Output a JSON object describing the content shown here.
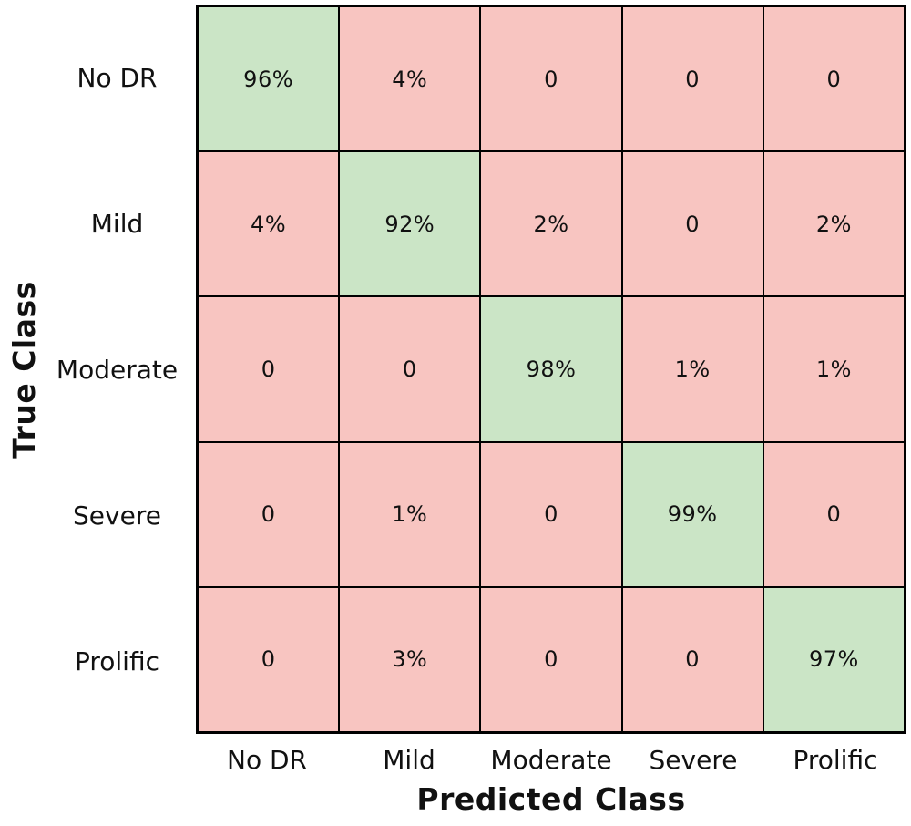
{
  "figure": {
    "background_color": "#ffffff",
    "grid_line_color": "#000000",
    "text_color": "#111111"
  },
  "chart_data": {
    "type": "heatmap",
    "subtype": "confusion-matrix",
    "title": "",
    "xlabel": "Predicted Class",
    "ylabel": "True Class",
    "x_categories": [
      "No DR",
      "Mild",
      "Moderate",
      "Severe",
      "Prolific"
    ],
    "y_categories": [
      "No DR",
      "Mild",
      "Moderate",
      "Severe",
      "Prolific"
    ],
    "cell_values": [
      [
        "96%",
        "4%",
        "0",
        "0",
        "0"
      ],
      [
        "4%",
        "92%",
        "2%",
        "0",
        "2%"
      ],
      [
        "0",
        "0",
        "98%",
        "1%",
        "1%"
      ],
      [
        "0",
        "1%",
        "0",
        "99%",
        "0"
      ],
      [
        "0",
        "3%",
        "0",
        "0",
        "97%"
      ]
    ],
    "diagonal_color": "#cbe5c6",
    "off_diagonal_color": "#f8c5c1",
    "legend": "none",
    "grid": "on"
  }
}
